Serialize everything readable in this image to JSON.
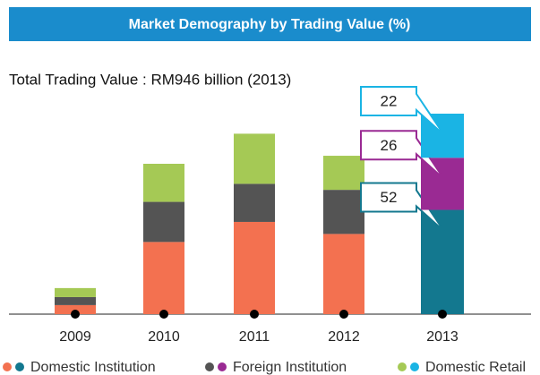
{
  "chart_data": {
    "type": "stacked_bar",
    "title": "Market Demography by Trading Value (%)",
    "subtitle": "Total Trading Value : RM946 billion (2013)",
    "categories": [
      "2009",
      "2010",
      "2011",
      "2012",
      "2013"
    ],
    "series": [
      {
        "name": "Domestic Institution",
        "colors": [
          "#f37150",
          "#f37150",
          "#f37150",
          "#f37150",
          "#13788f"
        ],
        "values": [
          4.5,
          36,
          46,
          40,
          52
        ],
        "value_labels": [
          null,
          null,
          null,
          null,
          "52"
        ]
      },
      {
        "name": "Foreign Institution",
        "colors": [
          "#545454",
          "#545454",
          "#545454",
          "#545454",
          "#9a2a93"
        ],
        "values": [
          4,
          20,
          19,
          22,
          26
        ],
        "value_labels": [
          null,
          null,
          null,
          null,
          "26"
        ]
      },
      {
        "name": "Domestic Retail",
        "colors": [
          "#a5c955",
          "#a5c955",
          "#a5c955",
          "#a5c955",
          "#1ab4e4"
        ],
        "values": [
          4.5,
          19,
          25,
          17,
          22
        ],
        "value_labels": [
          null,
          null,
          null,
          null,
          "22"
        ]
      }
    ]
  }
}
